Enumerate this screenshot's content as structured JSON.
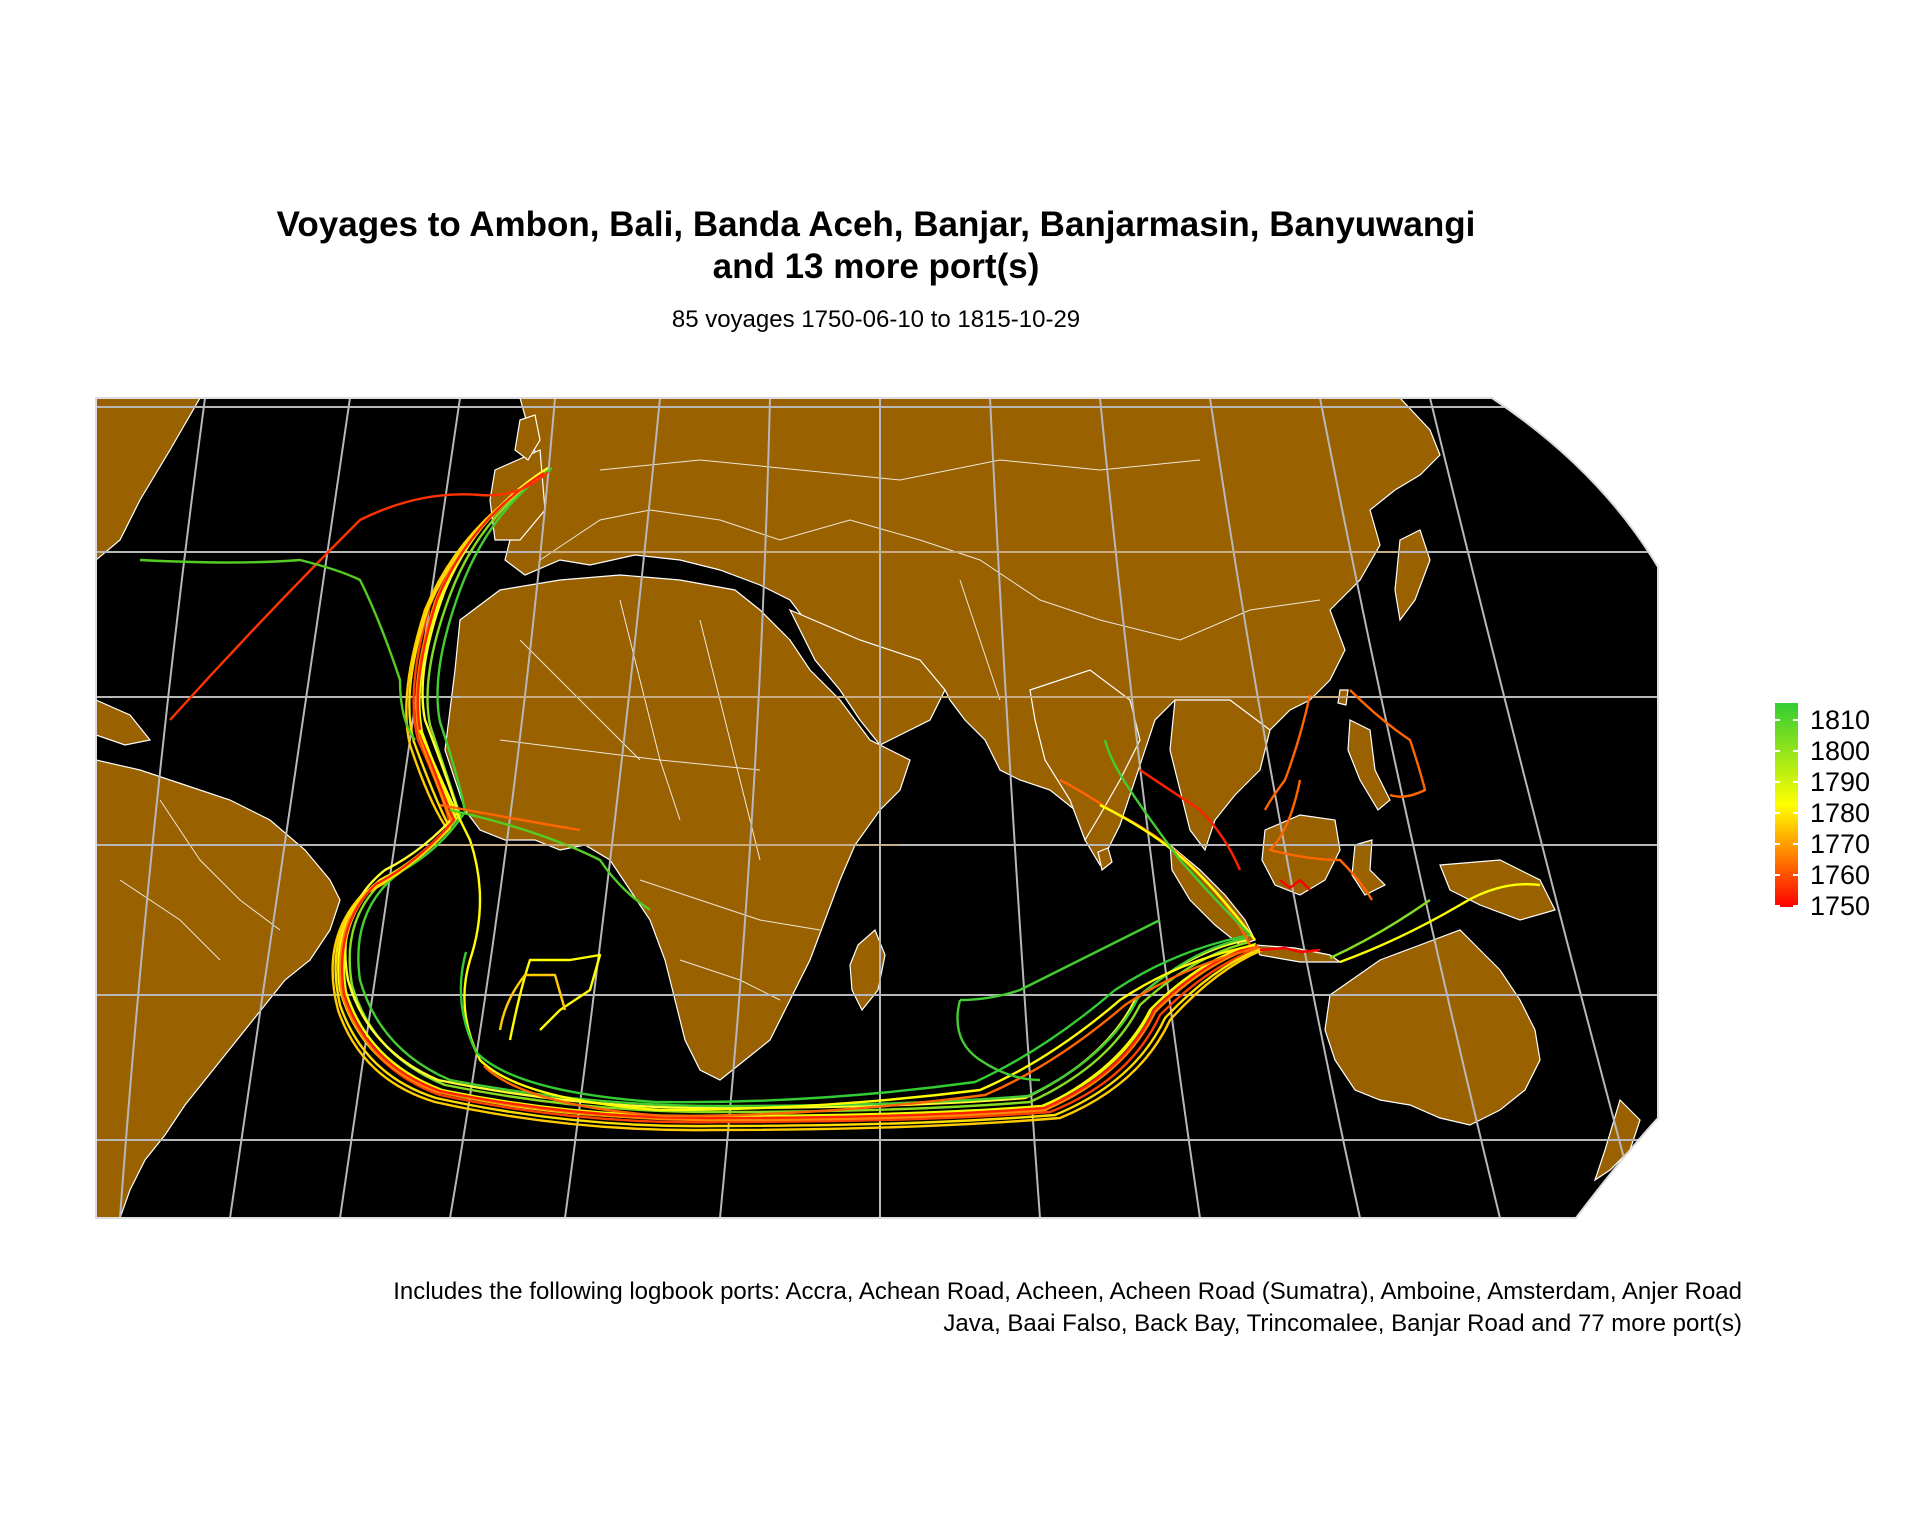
{
  "title_line1": "Voyages to Ambon, Bali, Banda Aceh, Banjar, Banjarmasin, Banyuwangi",
  "title_line2": "and 13 more port(s)",
  "subtitle": "85 voyages 1750-06-10 to 1815-10-29",
  "caption_line1": "Includes the following logbook ports: Accra, Achean Road, Acheen, Acheen Road (Sumatra), Amboine, Amsterdam, Anjer Road",
  "caption_line2": "Java, Baai Falso, Back Bay, Trincomalee, Banjar Road and 77 more port(s)",
  "colors": {
    "ocean": "#000000",
    "land": "#996100",
    "borders": "#ffffff",
    "graticule": "#b8b8b8",
    "graticule_land": "#e0a040",
    "scale_low": "#ff0000",
    "scale_mid": "#ffff00",
    "scale_high": "#33cc33"
  },
  "legend": {
    "labels": [
      "1810",
      "1800",
      "1790",
      "1780",
      "1770",
      "1760",
      "1750"
    ]
  }
}
